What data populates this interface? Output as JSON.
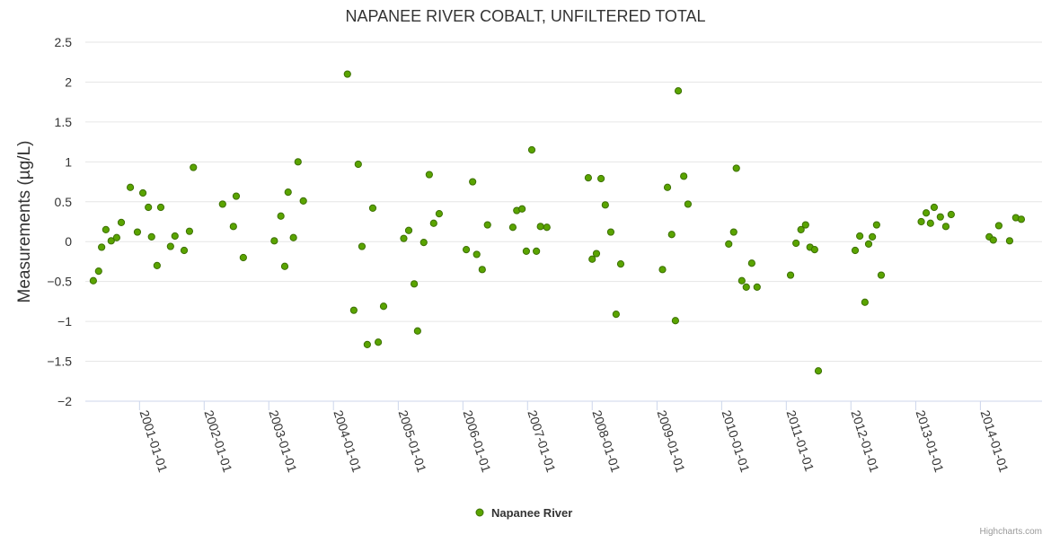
{
  "chart_data": {
    "type": "scatter",
    "title": "NAPANEE RIVER COBALT, UNFILTERED TOTAL",
    "ylabel": "Measurements (µg/L)",
    "ylim": [
      -2,
      2.5
    ],
    "yticks": [
      {
        "value": 2.5,
        "label": "2.5"
      },
      {
        "value": 2,
        "label": "2"
      },
      {
        "value": 1.5,
        "label": "1.5"
      },
      {
        "value": 1,
        "label": "1"
      },
      {
        "value": 0.5,
        "label": "0.5"
      },
      {
        "value": 0,
        "label": "0"
      },
      {
        "value": -0.5,
        "label": "−0.5"
      },
      {
        "value": -1,
        "label": "−1"
      },
      {
        "value": -1.5,
        "label": "−1.5"
      },
      {
        "value": -2,
        "label": "−2"
      }
    ],
    "xlim": [
      "2000-03-01",
      "2014-12-15"
    ],
    "xticks": [
      "2001-01-01",
      "2002-01-01",
      "2003-01-01",
      "2004-01-01",
      "2005-01-01",
      "2006-01-01",
      "2007-01-01",
      "2008-01-01",
      "2009-01-01",
      "2010-01-01",
      "2011-01-01",
      "2012-01-01",
      "2013-01-01",
      "2014-01-01"
    ],
    "grid": true,
    "legend_position": "bottom-center",
    "marker_color": "#5aa400",
    "marker_edge_color": "#3c7000",
    "series": [
      {
        "name": "Napanee River",
        "points": [
          [
            "2000-04-15",
            -0.49
          ],
          [
            "2000-05-15",
            -0.37
          ],
          [
            "2000-06-01",
            -0.07
          ],
          [
            "2000-06-25",
            0.15
          ],
          [
            "2000-07-25",
            0.01
          ],
          [
            "2000-08-25",
            0.05
          ],
          [
            "2000-09-20",
            0.24
          ],
          [
            "2000-11-10",
            0.68
          ],
          [
            "2000-12-20",
            0.12
          ],
          [
            "2001-01-20",
            0.61
          ],
          [
            "2001-02-20",
            0.43
          ],
          [
            "2001-03-10",
            0.06
          ],
          [
            "2001-04-10",
            -0.3
          ],
          [
            "2001-05-01",
            0.43
          ],
          [
            "2001-06-25",
            -0.06
          ],
          [
            "2001-07-20",
            0.07
          ],
          [
            "2001-09-10",
            -0.11
          ],
          [
            "2001-10-10",
            0.13
          ],
          [
            "2001-11-01",
            0.93
          ],
          [
            "2002-04-15",
            0.47
          ],
          [
            "2002-06-15",
            0.19
          ],
          [
            "2002-07-01",
            0.57
          ],
          [
            "2002-08-10",
            -0.2
          ],
          [
            "2003-02-01",
            0.01
          ],
          [
            "2003-03-10",
            0.32
          ],
          [
            "2003-04-01",
            -0.31
          ],
          [
            "2003-04-20",
            0.62
          ],
          [
            "2003-05-20",
            0.05
          ],
          [
            "2003-06-15",
            1.0
          ],
          [
            "2003-07-15",
            0.51
          ],
          [
            "2004-03-20",
            2.1
          ],
          [
            "2004-04-25",
            -0.86
          ],
          [
            "2004-05-20",
            0.97
          ],
          [
            "2004-06-10",
            -0.06
          ],
          [
            "2004-07-10",
            -1.29
          ],
          [
            "2004-08-10",
            0.42
          ],
          [
            "2004-09-10",
            -1.26
          ],
          [
            "2004-10-10",
            -0.81
          ],
          [
            "2005-02-01",
            0.04
          ],
          [
            "2005-03-01",
            0.14
          ],
          [
            "2005-04-01",
            -0.53
          ],
          [
            "2005-04-20",
            -1.12
          ],
          [
            "2005-05-25",
            -0.01
          ],
          [
            "2005-06-25",
            0.84
          ],
          [
            "2005-07-20",
            0.23
          ],
          [
            "2005-08-20",
            0.35
          ],
          [
            "2006-01-20",
            -0.1
          ],
          [
            "2006-02-25",
            0.75
          ],
          [
            "2006-03-20",
            -0.16
          ],
          [
            "2006-04-20",
            -0.35
          ],
          [
            "2006-05-20",
            0.21
          ],
          [
            "2006-10-10",
            0.18
          ],
          [
            "2006-11-01",
            0.39
          ],
          [
            "2006-12-01",
            0.41
          ],
          [
            "2006-12-25",
            -0.12
          ],
          [
            "2007-01-25",
            1.15
          ],
          [
            "2007-02-20",
            -0.12
          ],
          [
            "2007-03-15",
            0.19
          ],
          [
            "2007-04-20",
            0.18
          ],
          [
            "2007-12-10",
            0.8
          ],
          [
            "2008-01-01",
            -0.22
          ],
          [
            "2008-01-25",
            -0.15
          ],
          [
            "2008-02-20",
            0.79
          ],
          [
            "2008-03-15",
            0.46
          ],
          [
            "2008-04-15",
            0.12
          ],
          [
            "2008-05-15",
            -0.91
          ],
          [
            "2008-06-10",
            -0.28
          ],
          [
            "2009-02-01",
            -0.35
          ],
          [
            "2009-03-01",
            0.68
          ],
          [
            "2009-03-25",
            0.09
          ],
          [
            "2009-04-15",
            -0.99
          ],
          [
            "2009-05-01",
            1.89
          ],
          [
            "2009-06-01",
            0.82
          ],
          [
            "2009-06-25",
            0.47
          ],
          [
            "2010-02-10",
            -0.03
          ],
          [
            "2010-03-10",
            0.12
          ],
          [
            "2010-03-25",
            0.92
          ],
          [
            "2010-04-25",
            -0.49
          ],
          [
            "2010-05-20",
            -0.57
          ],
          [
            "2010-06-20",
            -0.27
          ],
          [
            "2010-07-20",
            -0.57
          ],
          [
            "2011-01-25",
            -0.42
          ],
          [
            "2011-02-25",
            -0.02
          ],
          [
            "2011-03-25",
            0.15
          ],
          [
            "2011-04-20",
            0.21
          ],
          [
            "2011-05-15",
            -0.07
          ],
          [
            "2011-06-10",
            -0.1
          ],
          [
            "2011-07-01",
            -1.62
          ],
          [
            "2012-01-25",
            -0.11
          ],
          [
            "2012-02-20",
            0.07
          ],
          [
            "2012-03-20",
            -0.76
          ],
          [
            "2012-04-10",
            -0.03
          ],
          [
            "2012-05-01",
            0.06
          ],
          [
            "2012-05-25",
            0.21
          ],
          [
            "2012-06-20",
            -0.42
          ],
          [
            "2013-02-01",
            0.25
          ],
          [
            "2013-03-01",
            0.36
          ],
          [
            "2013-03-25",
            0.23
          ],
          [
            "2013-04-15",
            0.43
          ],
          [
            "2013-05-20",
            0.31
          ],
          [
            "2013-06-20",
            0.19
          ],
          [
            "2013-07-20",
            0.34
          ],
          [
            "2014-02-20",
            0.06
          ],
          [
            "2014-03-15",
            0.02
          ],
          [
            "2014-04-15",
            0.2
          ],
          [
            "2014-06-15",
            0.01
          ],
          [
            "2014-07-20",
            0.3
          ],
          [
            "2014-08-20",
            0.28
          ]
        ]
      }
    ]
  },
  "credits": "Highcharts.com"
}
